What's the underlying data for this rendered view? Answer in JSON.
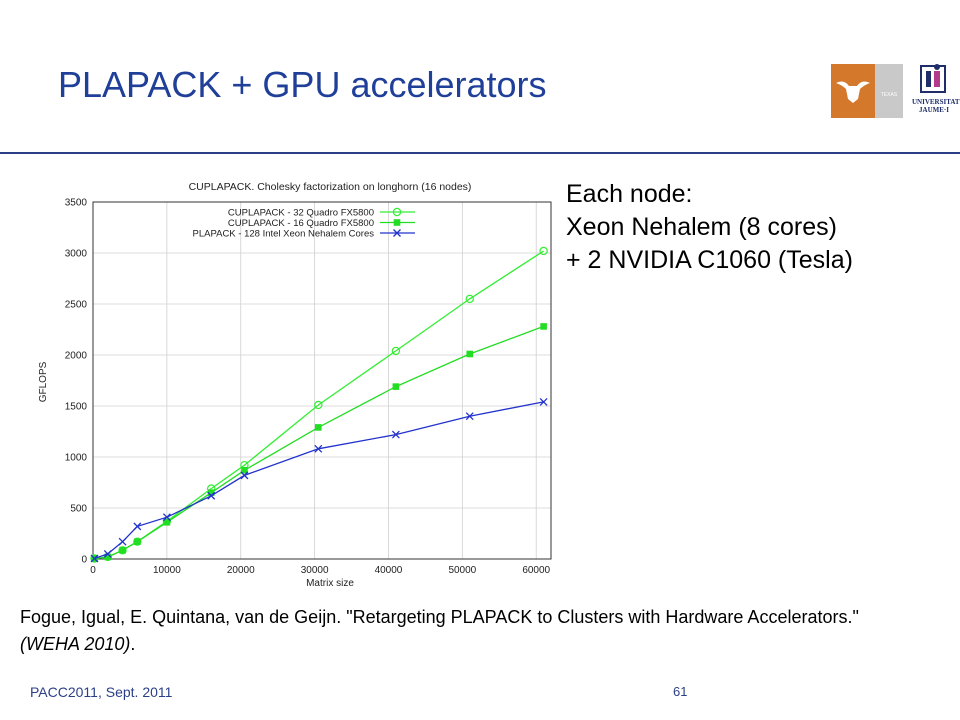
{
  "slide": {
    "title": "PLAPACK + GPU accelerators",
    "footer": "PACC2011, Sept. 2011",
    "page_number": "61"
  },
  "logos": {
    "texas_label": "TEXAS",
    "uji_line1": "UNIVERSITAT",
    "uji_line2": "JAUME·I"
  },
  "note": {
    "line1": "Each node:",
    "line2": "Xeon Nehalem (8 cores)",
    "line3": "+ 2 NVIDIA C1060 (Tesla)"
  },
  "citation": {
    "text": "Fogue, Igual, E. Quintana, van de Geijn. \"Retargeting PLAPACK to Clusters with Hardware Accelerators.\"",
    "venue": "(WEHA 2010)",
    "end": "."
  },
  "chart_data": {
    "type": "line",
    "title": "CUPLAPACK. Cholesky factorization on longhorn (16 nodes)",
    "xlabel": "Matrix size",
    "ylabel": "GFLOPS",
    "xlim": [
      0,
      62000
    ],
    "ylim": [
      0,
      3500
    ],
    "xticks": [
      0,
      10000,
      20000,
      30000,
      40000,
      50000,
      60000
    ],
    "yticks": [
      0,
      500,
      1000,
      1500,
      2000,
      2500,
      3000,
      3500
    ],
    "grid": true,
    "legend": "top-left",
    "series": [
      {
        "name": "CUPLAPACK - 32 Quadro FX5800",
        "color": "#33ee33",
        "marker": "circle",
        "points": [
          [
            200,
            5
          ],
          [
            2000,
            20
          ],
          [
            4000,
            85
          ],
          [
            6000,
            170
          ],
          [
            10000,
            370
          ],
          [
            16000,
            690
          ],
          [
            20500,
            920
          ],
          [
            30500,
            1510
          ],
          [
            41000,
            2040
          ],
          [
            51000,
            2550
          ],
          [
            61000,
            3020
          ]
        ]
      },
      {
        "name": "CUPLAPACK - 16 Quadro FX5800",
        "color": "#22dd22",
        "marker": "square",
        "points": [
          [
            200,
            5
          ],
          [
            2000,
            20
          ],
          [
            4000,
            85
          ],
          [
            6000,
            170
          ],
          [
            10000,
            360
          ],
          [
            16000,
            650
          ],
          [
            20500,
            870
          ],
          [
            30500,
            1290
          ],
          [
            41000,
            1690
          ],
          [
            51000,
            2010
          ],
          [
            61000,
            2280
          ]
        ]
      },
      {
        "name": "PLAPACK - 128 Intel Xeon Nehalem Cores",
        "color": "#2233cc",
        "marker": "cross",
        "points": [
          [
            200,
            5
          ],
          [
            2000,
            50
          ],
          [
            4000,
            170
          ],
          [
            6000,
            320
          ],
          [
            10000,
            410
          ],
          [
            16000,
            620
          ],
          [
            20500,
            820
          ],
          [
            30500,
            1080
          ],
          [
            41000,
            1220
          ],
          [
            51000,
            1400
          ],
          [
            61000,
            1540
          ]
        ]
      }
    ]
  }
}
